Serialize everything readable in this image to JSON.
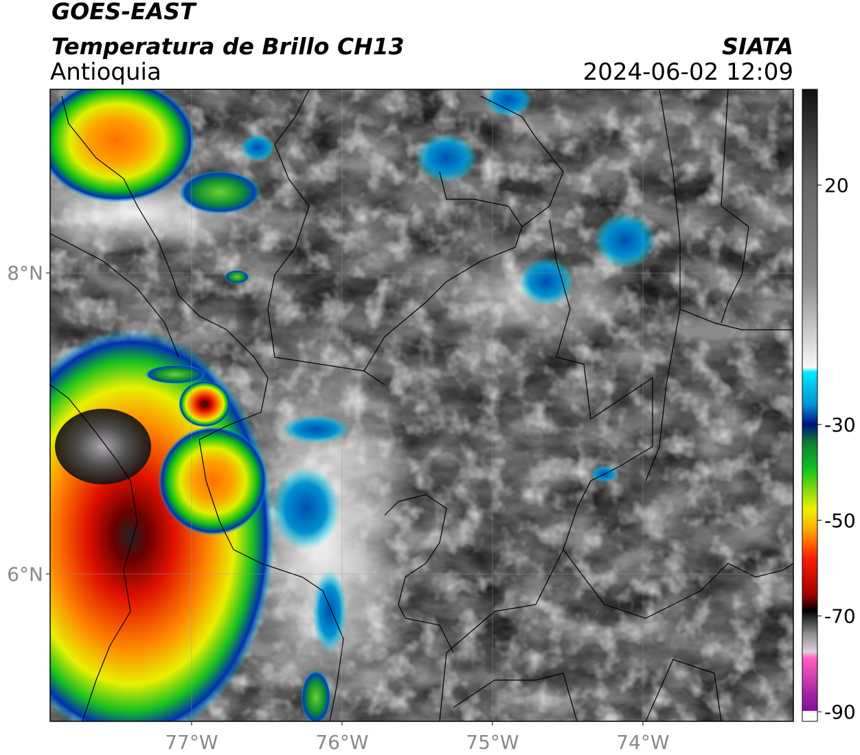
{
  "header": {
    "title": "GOES-EAST",
    "subtitle": "Temperatura de Brillo CH13",
    "region": "Antioquia",
    "source": "SIATA",
    "datetime": "2024-06-02 12:09"
  },
  "map": {
    "xlim": [
      -77.94,
      -73.0
    ],
    "ylim": [
      5.02,
      9.22
    ],
    "xticks": [
      {
        "value": -77,
        "label": "77°W"
      },
      {
        "value": -76,
        "label": "76°W"
      },
      {
        "value": -75,
        "label": "75°W"
      },
      {
        "value": -74,
        "label": "74°W"
      }
    ],
    "yticks": [
      {
        "value": 8,
        "label": "8°N"
      },
      {
        "value": 6,
        "label": "6°N"
      }
    ],
    "grid": true
  },
  "colorbar": {
    "lim": [
      -92,
      40
    ],
    "ticks": [
      20,
      -30,
      -50,
      -70,
      -90
    ]
  }
}
